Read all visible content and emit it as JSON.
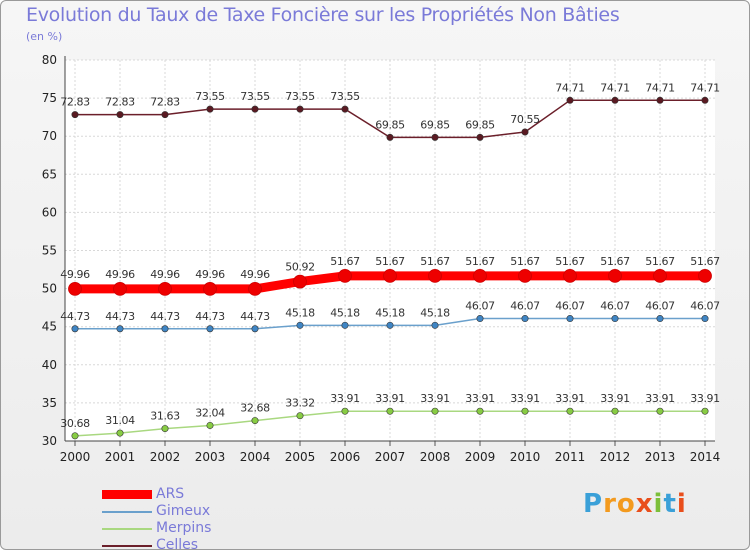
{
  "chart_data": {
    "type": "line",
    "title": "Evolution du Taux de Taxe Foncière sur les Propriétés Non Bâties",
    "ylabel": "(en %)",
    "xlabel": "",
    "ylim": [
      30,
      80
    ],
    "yticks": [
      "30",
      "35",
      "40",
      "45",
      "50",
      "55",
      "60",
      "65",
      "70",
      "75",
      "80"
    ],
    "categories": [
      "2000",
      "2001",
      "2002",
      "2003",
      "2004",
      "2005",
      "2006",
      "2007",
      "2008",
      "2009",
      "2010",
      "2011",
      "2012",
      "2013",
      "2014"
    ],
    "series": [
      {
        "name": "Celles",
        "color": "#6b1f2a",
        "marker": "#5a1a22",
        "values": [
          72.83,
          72.83,
          72.83,
          73.55,
          73.55,
          73.55,
          73.55,
          69.85,
          69.85,
          69.85,
          70.55,
          74.71,
          74.71,
          74.71,
          74.71
        ],
        "labels": [
          "72.83",
          "72.83",
          "72.83",
          "73.55",
          "73.55",
          "73.55",
          "73.55",
          "69.85",
          "69.85",
          "69.85",
          "70.55",
          "74.71",
          "74.71",
          "74.71",
          "74.71"
        ]
      },
      {
        "name": "ARS",
        "color": "#ff0000",
        "marker": "#ee0000",
        "values": [
          49.96,
          49.96,
          49.96,
          49.96,
          49.96,
          50.92,
          51.67,
          51.67,
          51.67,
          51.67,
          51.67,
          51.67,
          51.67,
          51.67,
          51.67
        ],
        "labels": [
          "49.96",
          "49.96",
          "49.96",
          "49.96",
          "49.96",
          "50.92",
          "51.67",
          "51.67",
          "51.67",
          "51.67",
          "51.67",
          "51.67",
          "51.67",
          "51.67",
          "51.67"
        ]
      },
      {
        "name": "Gimeux",
        "color": "#6aa0cc",
        "marker": "#3f85c4",
        "values": [
          44.73,
          44.73,
          44.73,
          44.73,
          44.73,
          45.18,
          45.18,
          45.18,
          45.18,
          46.07,
          46.07,
          46.07,
          46.07,
          46.07,
          46.07
        ],
        "labels": [
          "44.73",
          "44.73",
          "44.73",
          "44.73",
          "44.73",
          "45.18",
          "45.18",
          "45.18",
          "45.18",
          "46.07",
          "46.07",
          "46.07",
          "46.07",
          "46.07",
          "46.07"
        ]
      },
      {
        "name": "Merpins",
        "color": "#a9d880",
        "marker": "#88cc44",
        "values": [
          30.68,
          31.04,
          31.63,
          32.04,
          32.68,
          33.32,
          33.91,
          33.91,
          33.91,
          33.91,
          33.91,
          33.91,
          33.91,
          33.91,
          33.91
        ],
        "labels": [
          "30.68",
          "31.04",
          "31.63",
          "32.04",
          "32.68",
          "33.32",
          "33.91",
          "33.91",
          "33.91",
          "33.91",
          "33.91",
          "33.91",
          "33.91",
          "33.91",
          "33.91"
        ]
      }
    ],
    "legend": {
      "position": "bottom-left",
      "items": [
        {
          "name": "ARS",
          "color": "#ff0000"
        },
        {
          "name": "Gimeux",
          "color": "#6aa0cc"
        },
        {
          "name": "Merpins",
          "color": "#a9d880"
        },
        {
          "name": "Celles",
          "color": "#6b1f2a"
        }
      ]
    },
    "grid": true
  },
  "logo": {
    "letters": [
      "P",
      "r",
      "o",
      "x",
      "i",
      "t",
      "i"
    ],
    "colors": [
      "#3aa0d8",
      "#f39a1e",
      "#f39a1e",
      "#e94e1b",
      "#7cbf3a",
      "#3aa0d8",
      "#e94e1b"
    ]
  }
}
